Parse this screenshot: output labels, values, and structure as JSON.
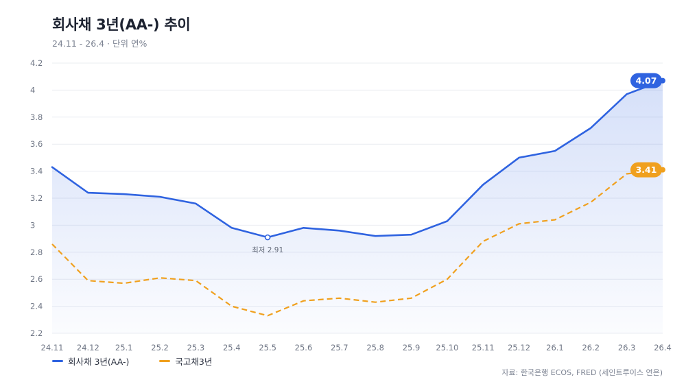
{
  "header": {
    "title": "회사채 3년(AA-) 추이",
    "subtitle": "24.11 - 26.4 · 단위 연%"
  },
  "source": "자료: 한국은행 ECOS, FRED (세인트루이스 연은)",
  "colors": {
    "corporate": "#2f63e0",
    "treasury": "#f0a01e",
    "grid": "#e9ecf1",
    "axis_text": "#6f7685"
  },
  "chart_data": {
    "type": "line",
    "categories": [
      "24.11",
      "24.12",
      "25.1",
      "25.2",
      "25.3",
      "25.4",
      "25.5",
      "25.6",
      "25.7",
      "25.8",
      "25.9",
      "25.10",
      "25.11",
      "25.12",
      "26.1",
      "26.2",
      "26.3",
      "26.4"
    ],
    "series": [
      {
        "name": "회사채 3년(AA-)",
        "values": [
          3.43,
          3.24,
          3.23,
          3.21,
          3.16,
          2.98,
          2.91,
          2.98,
          2.96,
          2.92,
          2.93,
          3.03,
          3.3,
          3.5,
          3.55,
          3.72,
          3.97,
          4.07
        ],
        "style": "solid",
        "end_label": "4.07"
      },
      {
        "name": "국고채3년",
        "values": [
          2.86,
          2.59,
          2.57,
          2.61,
          2.59,
          2.4,
          2.33,
          2.44,
          2.46,
          2.43,
          2.46,
          2.6,
          2.88,
          3.01,
          3.04,
          3.17,
          3.38,
          3.41
        ],
        "style": "dashed",
        "end_label": "3.41"
      }
    ],
    "annotation": {
      "series": 0,
      "index": 6,
      "text": "최저 2.91"
    },
    "ylim": [
      2.2,
      4.2
    ],
    "yticks": [
      "2.2",
      "2.4",
      "2.6",
      "2.8",
      "3",
      "3.2",
      "3.4",
      "3.6",
      "3.8",
      "4",
      "4.2"
    ],
    "grid": true,
    "legend_position": "bottom-left"
  }
}
